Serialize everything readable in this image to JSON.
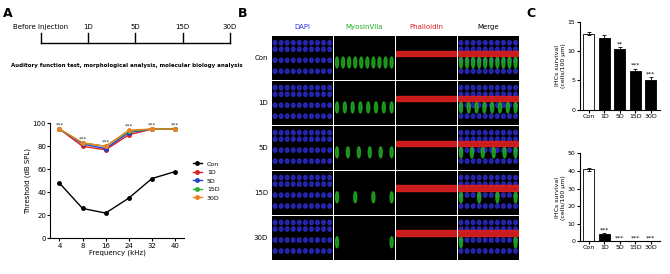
{
  "panel_labels": [
    "A",
    "B",
    "C"
  ],
  "timeline": {
    "points": [
      "Before Injection",
      "1D",
      "5D",
      "15D",
      "30D"
    ],
    "caption": "Auditory function test, morphological analysis, molecular biology analysis"
  },
  "image_grid": {
    "columns": [
      {
        "label": "DAPI",
        "color": "#3030e0"
      },
      {
        "label": "MyosinVIIa",
        "color": "#20b020"
      },
      {
        "label": "Phalloidin",
        "color": "#e02020"
      },
      {
        "label": "Merge",
        "color": "#000000"
      }
    ],
    "rows": [
      "Con",
      "1D",
      "5D",
      "15D",
      "30D"
    ]
  },
  "chart_data": [
    {
      "type": "line",
      "categories": [
        "4",
        "8",
        "16",
        "24",
        "32",
        "40"
      ],
      "xlabel": "Frequency (kHz)",
      "ylabel": "Threshold (dB SPL)",
      "ylim": [
        0,
        100
      ],
      "yticks": [
        0,
        20,
        40,
        60,
        80,
        100
      ],
      "legend": "right",
      "marker": "o",
      "annotations": [
        "***",
        "***",
        "***",
        "***",
        "***",
        "***"
      ],
      "series": [
        {
          "name": "Con",
          "color": "#000000",
          "values": [
            48,
            26,
            22,
            35,
            52,
            58
          ]
        },
        {
          "name": "1D",
          "color": "#e02020",
          "values": [
            95,
            80,
            77,
            90,
            95,
            95
          ]
        },
        {
          "name": "5D",
          "color": "#2040d0",
          "values": [
            95,
            82,
            78,
            92,
            95,
            95
          ]
        },
        {
          "name": "15D",
          "color": "#30b030",
          "values": [
            95,
            83,
            80,
            93,
            95,
            95
          ]
        },
        {
          "name": "30D",
          "color": "#f08020",
          "values": [
            95,
            83,
            80,
            94,
            95,
            95
          ]
        }
      ]
    },
    {
      "type": "bar",
      "categories": [
        "Con",
        "1D",
        "5D",
        "15D",
        "30D"
      ],
      "ylabel": "IHCs survival\n(cells/100 μm)",
      "values": [
        13,
        12.2,
        10.3,
        6.6,
        5.0
      ],
      "errors": [
        0.3,
        0.6,
        0.4,
        0.4,
        0.5
      ],
      "colors": [
        "#ffffff",
        "#000000",
        "#000000",
        "#000000",
        "#000000"
      ],
      "ylim": [
        0,
        15
      ],
      "yticks": [
        0,
        5,
        10,
        15
      ],
      "annotations": [
        null,
        null,
        "**",
        "***",
        "***"
      ]
    },
    {
      "type": "bar",
      "categories": [
        "Con",
        "1D",
        "5D",
        "15D",
        "30D"
      ],
      "ylabel": "IHCs survival\n(cells/100 μm)",
      "values": [
        41,
        4,
        0,
        0,
        0
      ],
      "errors": [
        0.8,
        0.5,
        0,
        0,
        0
      ],
      "colors": [
        "#ffffff",
        "#000000",
        "#000000",
        "#000000",
        "#000000"
      ],
      "ylim": [
        0,
        50
      ],
      "yticks": [
        0,
        10,
        20,
        30,
        40,
        50
      ],
      "annotations": [
        null,
        "***",
        "***",
        "***",
        "***"
      ]
    }
  ]
}
